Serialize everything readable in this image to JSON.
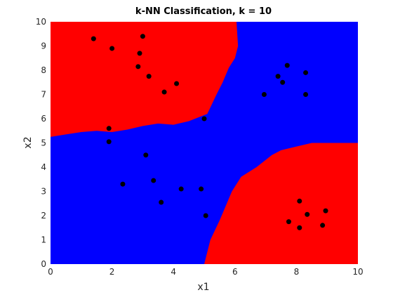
{
  "chart_data": {
    "type": "scatter",
    "title": "k-NN Classification, k = 10",
    "xlabel": "x1",
    "ylabel": "x2",
    "xlim": [
      0,
      10
    ],
    "ylim": [
      0,
      10
    ],
    "xticks": [
      "0",
      "2",
      "4",
      "6",
      "8",
      "10"
    ],
    "yticks": [
      "0",
      "1",
      "2",
      "3",
      "4",
      "5",
      "6",
      "7",
      "8",
      "9",
      "10"
    ],
    "grid": false,
    "colors": {
      "region_red": "#ff0000",
      "region_blue": "#0000ff",
      "points": "#000000"
    },
    "regions": {
      "top_left_red_boundary": [
        [
          0,
          5.25
        ],
        [
          0.5,
          5.35
        ],
        [
          1,
          5.45
        ],
        [
          1.5,
          5.5
        ],
        [
          2,
          5.45
        ],
        [
          2.5,
          5.55
        ],
        [
          3,
          5.7
        ],
        [
          3.5,
          5.8
        ],
        [
          4,
          5.75
        ],
        [
          4.5,
          5.9
        ],
        [
          5.1,
          6.2
        ],
        [
          5.4,
          7.0
        ],
        [
          5.6,
          7.5
        ],
        [
          5.8,
          8.1
        ],
        [
          6.0,
          8.5
        ],
        [
          6.1,
          9.0
        ],
        [
          6.05,
          10
        ]
      ],
      "bottom_right_red_boundary": [
        [
          5.0,
          0
        ],
        [
          5.2,
          1.0
        ],
        [
          5.5,
          1.8
        ],
        [
          5.7,
          2.4
        ],
        [
          5.9,
          3.0
        ],
        [
          6.2,
          3.6
        ],
        [
          6.7,
          4.0
        ],
        [
          7.2,
          4.5
        ],
        [
          7.5,
          4.7
        ],
        [
          8.0,
          4.85
        ],
        [
          8.5,
          5.0
        ],
        [
          10,
          5.0
        ]
      ]
    },
    "points": [
      {
        "x": 1.4,
        "y": 9.3
      },
      {
        "x": 2.0,
        "y": 8.9
      },
      {
        "x": 3.0,
        "y": 9.4
      },
      {
        "x": 2.9,
        "y": 8.7
      },
      {
        "x": 2.85,
        "y": 8.15
      },
      {
        "x": 3.2,
        "y": 7.75
      },
      {
        "x": 3.7,
        "y": 7.1
      },
      {
        "x": 4.1,
        "y": 7.45
      },
      {
        "x": 1.9,
        "y": 5.6
      },
      {
        "x": 1.9,
        "y": 5.05
      },
      {
        "x": 5.0,
        "y": 6.0
      },
      {
        "x": 3.1,
        "y": 4.5
      },
      {
        "x": 2.35,
        "y": 3.3
      },
      {
        "x": 3.35,
        "y": 3.45
      },
      {
        "x": 3.6,
        "y": 2.55
      },
      {
        "x": 4.25,
        "y": 3.1
      },
      {
        "x": 4.9,
        "y": 3.1
      },
      {
        "x": 5.05,
        "y": 2.0
      },
      {
        "x": 7.7,
        "y": 8.2
      },
      {
        "x": 7.4,
        "y": 7.75
      },
      {
        "x": 8.3,
        "y": 7.9
      },
      {
        "x": 7.55,
        "y": 7.5
      },
      {
        "x": 6.95,
        "y": 7.0
      },
      {
        "x": 8.3,
        "y": 7.0
      },
      {
        "x": 8.1,
        "y": 2.6
      },
      {
        "x": 8.95,
        "y": 2.2
      },
      {
        "x": 8.35,
        "y": 2.05
      },
      {
        "x": 7.75,
        "y": 1.75
      },
      {
        "x": 8.85,
        "y": 1.6
      },
      {
        "x": 8.1,
        "y": 1.5
      }
    ]
  }
}
